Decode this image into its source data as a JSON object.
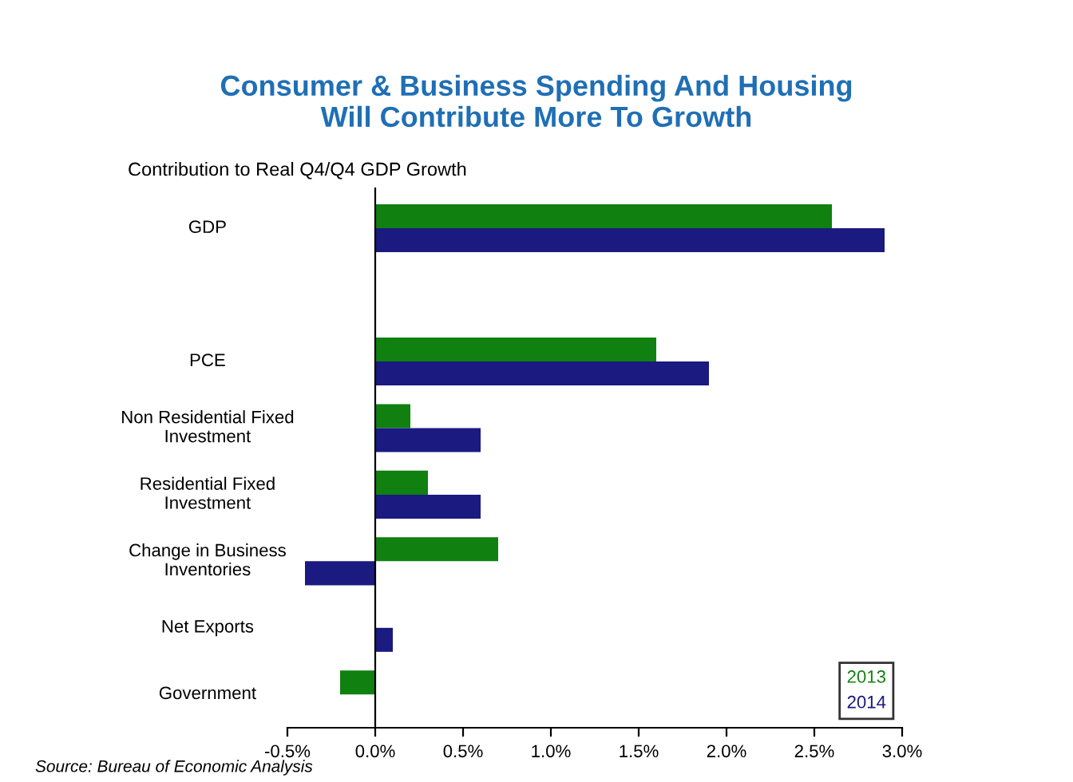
{
  "chart_data": {
    "type": "bar",
    "orientation": "horizontal",
    "title": "Consumer & Business Spending And Housing\nWill Contribute More To Growth",
    "subtitle": "Contribution to Real Q4/Q4 GDP Growth",
    "categories": [
      "GDP",
      null,
      "PCE",
      "Non Residential Fixed\nInvestment",
      "Residential Fixed\nInvestment",
      "Change in Business\nInventories",
      "Net Exports",
      "Government"
    ],
    "series": [
      {
        "name": "2013",
        "color": "#108010",
        "values": [
          2.6,
          null,
          1.6,
          0.2,
          0.3,
          0.7,
          null,
          -0.2
        ]
      },
      {
        "name": "2014",
        "color": "#1a1a80",
        "values": [
          2.9,
          null,
          1.9,
          0.6,
          0.6,
          -0.4,
          0.1,
          null
        ]
      }
    ],
    "xlim": [
      -0.5,
      3.0
    ],
    "xticks": [
      {
        "value": -0.5,
        "label": "-0.5%"
      },
      {
        "value": 0,
        "label": "0.0%"
      },
      {
        "value": 0.5,
        "label": "0.5%"
      },
      {
        "value": 1.0,
        "label": "1.0%"
      },
      {
        "value": 1.5,
        "label": "1.5%"
      },
      {
        "value": 2.0,
        "label": "2.0%"
      },
      {
        "value": 2.5,
        "label": "2.5%"
      },
      {
        "value": 3.0,
        "label": "3.0%"
      }
    ],
    "legend": "bottom right",
    "annotations": [
      "Source: Bureau of Economic Analysis"
    ]
  }
}
